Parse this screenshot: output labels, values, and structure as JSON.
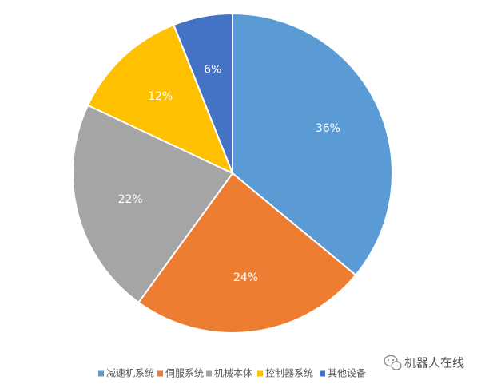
{
  "chart_data": {
    "type": "pie",
    "categories": [
      "减速机系统",
      "伺服系统",
      "机械本体",
      "控制器系统",
      "其他设备"
    ],
    "values": [
      36,
      24,
      22,
      12,
      6
    ],
    "labels": [
      "36%",
      "24%",
      "22%",
      "12%",
      "6%"
    ],
    "colors": [
      "#5B9BD5",
      "#ED7D31",
      "#A5A5A5",
      "#FFC000",
      "#4472C4"
    ],
    "start_angle_deg": 0,
    "direction": "clockwise",
    "legend_position": "bottom"
  },
  "watermark": {
    "icon": "wechat-icon",
    "text": "机器人在线"
  }
}
